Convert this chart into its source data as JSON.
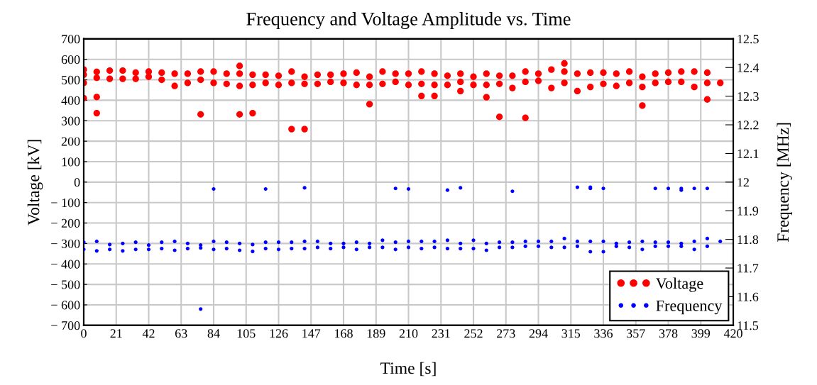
{
  "chart_data": {
    "type": "scatter",
    "title": "Frequency and Voltage Amplitude vs. Time",
    "xlabel": "Time [s]",
    "ylabel": "Voltage [kV]",
    "y2label": "Frequency [MHz]",
    "xlim": [
      0,
      420
    ],
    "xticks": [
      0,
      21,
      42,
      63,
      84,
      105,
      126,
      147,
      168,
      189,
      210,
      231,
      252,
      273,
      294,
      315,
      336,
      357,
      378,
      399,
      420
    ],
    "ylim": [
      -700,
      700
    ],
    "yticks": [
      {
        "value": -700,
        "label": "− 700"
      },
      {
        "value": -600,
        "label": "− 600"
      },
      {
        "value": -500,
        "label": "− 500"
      },
      {
        "value": -400,
        "label": "− 400"
      },
      {
        "value": -300,
        "label": "− 300"
      },
      {
        "value": -200,
        "label": "− 200"
      },
      {
        "value": -100,
        "label": "− 100"
      },
      0,
      100,
      200,
      300,
      400,
      500,
      600,
      700
    ],
    "y2lim": [
      11.5,
      12.5
    ],
    "y2ticks": [
      11.5,
      11.6,
      11.7,
      11.8,
      11.9,
      12,
      12.1,
      12.2,
      12.3,
      12.4,
      12.5
    ],
    "grid": true,
    "legend": "bottom right",
    "marker": "circle",
    "series": [
      {
        "name": "Voltage",
        "color": "#ff0000",
        "axis": "y",
        "x": [
          0,
          0,
          0,
          0,
          8.4,
          8.4,
          8.4,
          8.4,
          16.8,
          16.8,
          25.2,
          25.2,
          33.6,
          33.6,
          42,
          42,
          50.4,
          50.4,
          58.8,
          58.8,
          67.2,
          67.2,
          75.6,
          75.6,
          75.6,
          84,
          84,
          92.4,
          92.4,
          100.8,
          100.8,
          100.8,
          100.8,
          109.2,
          109.2,
          109.2,
          117.6,
          117.6,
          126,
          126,
          134.4,
          134.4,
          134.4,
          142.8,
          142.8,
          142.8,
          151.2,
          151.2,
          159.6,
          159.6,
          168,
          168,
          176.4,
          176.4,
          184.8,
          184.8,
          184.8,
          193.2,
          193.2,
          201.6,
          201.6,
          210,
          210,
          218.4,
          218.4,
          218.4,
          226.8,
          226.8,
          226.8,
          235.2,
          235.2,
          243.6,
          243.6,
          243.6,
          252,
          252,
          260.4,
          260.4,
          260.4,
          268.8,
          268.8,
          268.8,
          277.2,
          277.2,
          285.6,
          285.6,
          285.6,
          294,
          294,
          302.4,
          302.4,
          310.8,
          310.8,
          310.8,
          319.2,
          319.2,
          327.6,
          327.6,
          336,
          336,
          344.4,
          344.4,
          352.8,
          352.8,
          361.2,
          361.2,
          361.2,
          369.6,
          369.6,
          378,
          378,
          386.4,
          386.4,
          394.8,
          394.8,
          403.2,
          403.2,
          403.2,
          411.6
        ],
        "values": [
          550,
          525,
          485,
          410,
          539,
          510,
          416,
          337,
          545,
          505,
          545,
          505,
          535,
          505,
          540,
          515,
          535,
          500,
          530,
          470,
          530,
          485,
          540,
          500,
          331,
          540,
          485,
          530,
          480,
          568,
          530,
          470,
          331,
          525,
          475,
          337,
          525,
          485,
          520,
          475,
          540,
          485,
          259,
          515,
          480,
          259,
          525,
          480,
          525,
          490,
          530,
          485,
          535,
          475,
          515,
          475,
          381,
          540,
          480,
          530,
          490,
          530,
          475,
          540,
          480,
          421,
          530,
          475,
          421,
          520,
          475,
          530,
          490,
          445,
          515,
          475,
          530,
          475,
          415,
          520,
          480,
          319,
          520,
          460,
          540,
          490,
          314,
          530,
          495,
          550,
          460,
          580,
          540,
          485,
          530,
          445,
          535,
          465,
          535,
          480,
          530,
          470,
          540,
          485,
          515,
          465,
          374,
          530,
          485,
          535,
          490,
          540,
          490,
          540,
          465,
          535,
          485,
          404,
          485
        ]
      },
      {
        "name": "Frequency",
        "color": "#0000ff",
        "axis": "y2",
        "x": [
          0,
          0,
          8.4,
          8.4,
          16.8,
          16.8,
          25.2,
          25.2,
          33.6,
          33.6,
          42,
          42,
          50.4,
          50.4,
          58.8,
          58.8,
          67.2,
          67.2,
          75.6,
          75.6,
          75.6,
          84,
          84,
          84,
          92.4,
          92.4,
          100.8,
          100.8,
          109.2,
          109.2,
          117.6,
          117.6,
          117.6,
          126,
          126,
          134.4,
          134.4,
          142.8,
          142.8,
          142.8,
          151.2,
          151.2,
          159.6,
          159.6,
          168,
          168,
          176.4,
          176.4,
          184.8,
          184.8,
          193.2,
          193.2,
          201.6,
          201.6,
          201.6,
          210,
          210,
          210,
          218.4,
          218.4,
          226.8,
          226.8,
          235.2,
          235.2,
          235.2,
          243.6,
          243.6,
          243.6,
          252,
          252,
          260.4,
          260.4,
          268.8,
          268.8,
          277.2,
          277.2,
          277.2,
          285.6,
          285.6,
          294,
          294,
          302.4,
          302.4,
          310.8,
          310.8,
          319.2,
          319.2,
          319.2,
          327.6,
          327.6,
          327.6,
          327.6,
          336,
          336,
          336,
          344.4,
          344.4,
          352.8,
          352.8,
          361.2,
          361.2,
          369.6,
          369.6,
          369.6,
          378,
          378,
          378,
          386.4,
          386.4,
          386.4,
          386.4,
          394.8,
          394.8,
          394.8,
          403.2,
          403.2,
          403.2,
          411.6
        ],
        "values": [
          11.79,
          11.765,
          11.793,
          11.76,
          11.782,
          11.765,
          11.786,
          11.76,
          11.79,
          11.765,
          11.78,
          11.765,
          11.79,
          11.768,
          11.793,
          11.762,
          11.786,
          11.768,
          11.78,
          11.77,
          11.557,
          11.793,
          11.765,
          11.976,
          11.79,
          11.768,
          11.786,
          11.762,
          11.782,
          11.758,
          11.79,
          11.768,
          11.976,
          11.79,
          11.765,
          11.79,
          11.768,
          11.793,
          11.768,
          11.98,
          11.793,
          11.772,
          11.786,
          11.768,
          11.786,
          11.772,
          11.79,
          11.765,
          11.786,
          11.772,
          11.797,
          11.772,
          11.79,
          11.765,
          11.978,
          11.793,
          11.772,
          11.976,
          11.793,
          11.768,
          11.793,
          11.772,
          11.797,
          11.768,
          11.972,
          11.786,
          11.768,
          11.98,
          11.797,
          11.768,
          11.786,
          11.762,
          11.79,
          11.772,
          11.79,
          11.772,
          11.968,
          11.793,
          11.776,
          11.793,
          11.776,
          11.793,
          11.772,
          11.803,
          11.772,
          11.793,
          11.776,
          11.982,
          11.793,
          11.757,
          11.982,
          11.978,
          11.793,
          11.757,
          11.978,
          11.786,
          11.776,
          11.79,
          11.772,
          11.793,
          11.765,
          11.79,
          11.776,
          11.978,
          11.79,
          11.776,
          11.978,
          11.786,
          11.776,
          11.978,
          11.972,
          11.793,
          11.765,
          11.978,
          11.803,
          11.776,
          11.978,
          11.793
        ]
      }
    ]
  }
}
